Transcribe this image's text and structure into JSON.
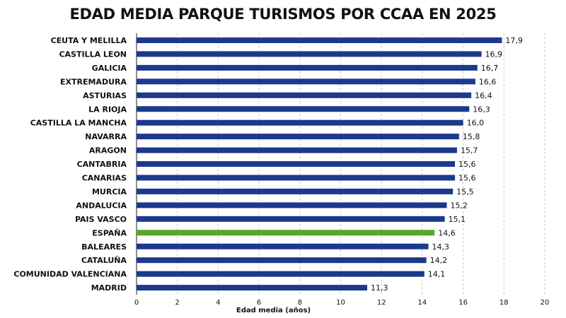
{
  "chart_data": {
    "type": "bar",
    "orientation": "horizontal",
    "title": "EDAD MEDIA PARQUE TURISMOS POR CCAA EN 2025",
    "xlabel": "Edad media (años)",
    "ylabel": "",
    "xlim": [
      0,
      20
    ],
    "xticks": [
      "0",
      "2",
      "4",
      "6",
      "8",
      "10",
      "12",
      "14",
      "16",
      "18",
      "20"
    ],
    "grid": true,
    "colors": {
      "default": "#1b3a8c",
      "highlight": "#5aa52c"
    },
    "categories": [
      "CEUTA Y MELILLA",
      "CASTILLA LEON",
      "GALICIA",
      "EXTREMADURA",
      "ASTURIAS",
      "LA RIOJA",
      "CASTILLA LA MANCHA",
      "NAVARRA",
      "ARAGON",
      "CANTABRIA",
      "CANARIAS",
      "MURCIA",
      "ANDALUCIA",
      "PAIS VASCO",
      "ESPAÑA",
      "BALEARES",
      "CATALUÑA",
      "COMUNIDAD VALENCIANA",
      "MADRID"
    ],
    "values": [
      17.9,
      16.9,
      16.7,
      16.6,
      16.4,
      16.3,
      16.0,
      15.8,
      15.7,
      15.6,
      15.6,
      15.5,
      15.2,
      15.1,
      14.6,
      14.3,
      14.2,
      14.1,
      11.3
    ],
    "value_labels": [
      "17,9",
      "16,9",
      "16,7",
      "16,6",
      "16,4",
      "16,3",
      "16,0",
      "15,8",
      "15,7",
      "15,6",
      "15,6",
      "15,5",
      "15,2",
      "15,1",
      "14,6",
      "14,3",
      "14,2",
      "14,1",
      "11,3"
    ],
    "highlight": "ESPAÑA"
  }
}
